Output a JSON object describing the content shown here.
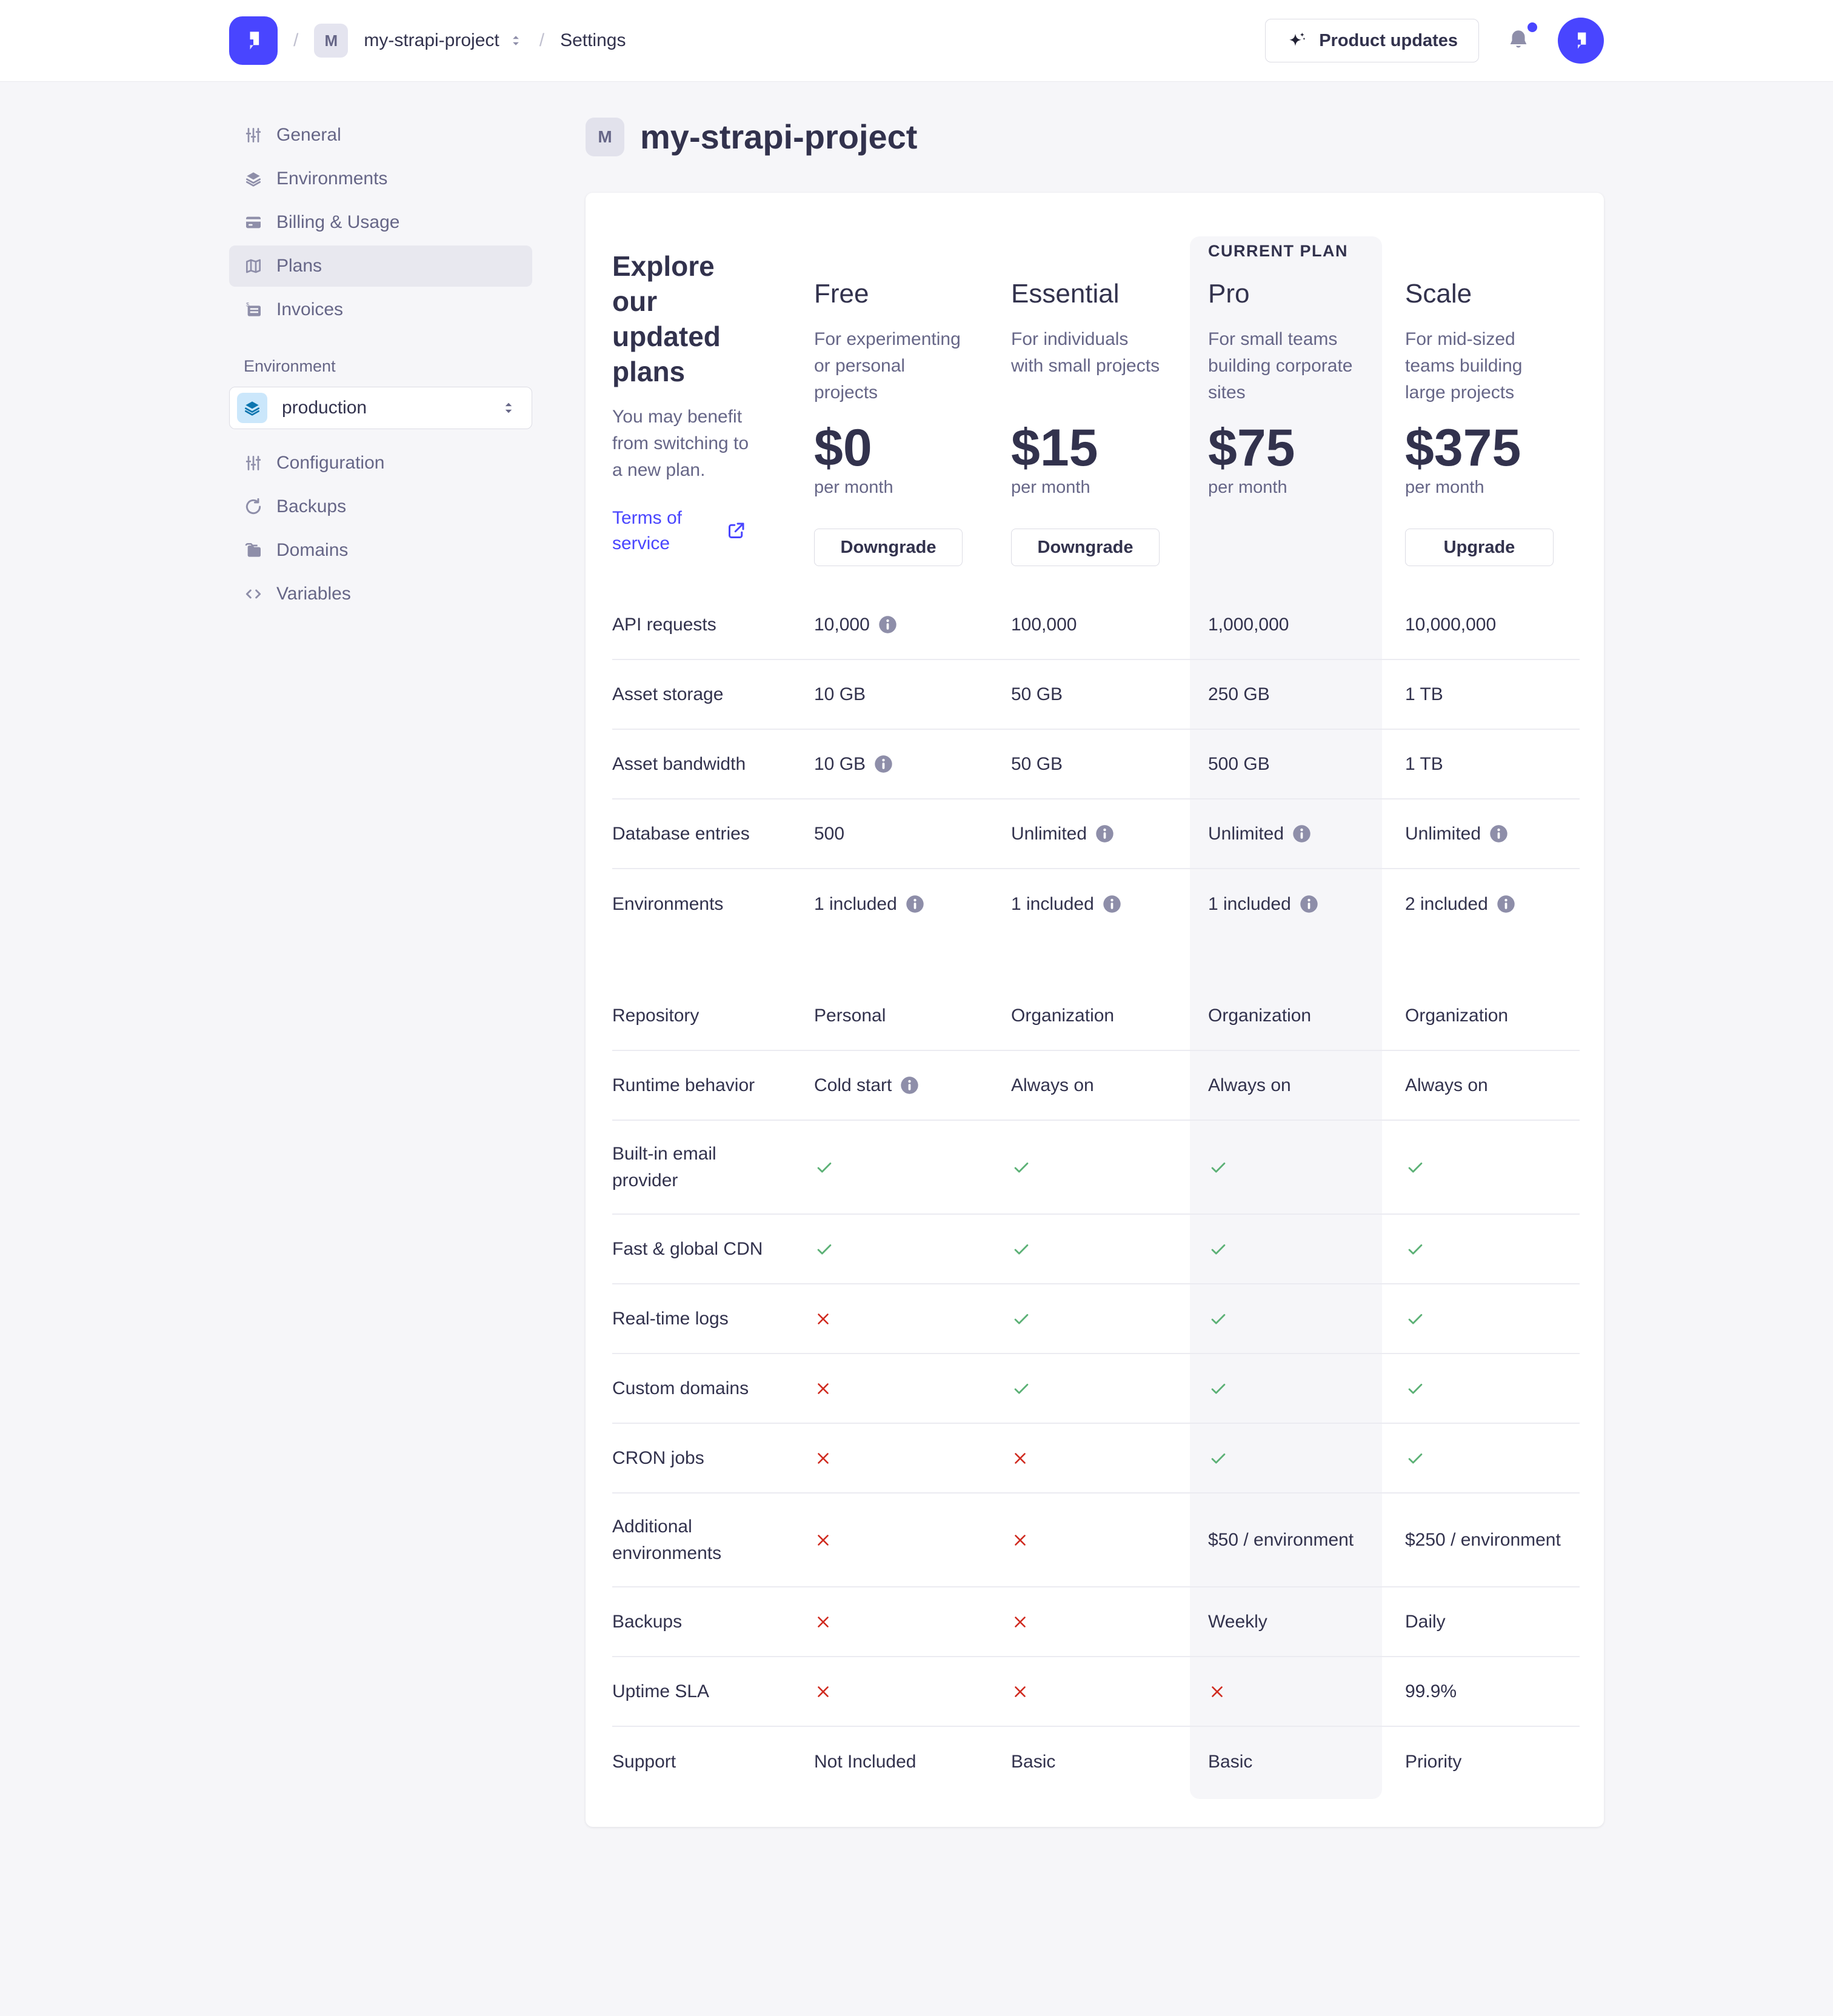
{
  "header": {
    "breadcrumb": {
      "separator": "/",
      "project_badge": "M",
      "project": "my-strapi-project",
      "settings": "Settings"
    },
    "product_updates": "Product updates"
  },
  "sidebar": {
    "project_nav": [
      {
        "label": "General",
        "icon": "sliders-icon",
        "active": false
      },
      {
        "label": "Environments",
        "icon": "layers-icon",
        "active": false
      },
      {
        "label": "Billing & Usage",
        "icon": "credit-card-icon",
        "active": false
      },
      {
        "label": "Plans",
        "icon": "map-icon",
        "active": true
      },
      {
        "label": "Invoices",
        "icon": "invoice-icon",
        "active": false
      }
    ],
    "environment_label": "Environment",
    "environment_select": {
      "value": "production",
      "icon": "layers-icon"
    },
    "environment_nav": [
      {
        "label": "Configuration",
        "icon": "sliders-icon",
        "active": false
      },
      {
        "label": "Backups",
        "icon": "refresh-icon",
        "active": false
      },
      {
        "label": "Domains",
        "icon": "folder-icon",
        "active": false
      },
      {
        "label": "Variables",
        "icon": "code-icon",
        "active": false
      }
    ]
  },
  "page": {
    "title": "my-strapi-project",
    "title_badge": "M"
  },
  "plans_card": {
    "intro": {
      "heading": "Explore our updated plans",
      "body": "You may benefit from switching to a new plan.",
      "terms_link": "Terms of service"
    },
    "current_plan_label": "CURRENT PLAN",
    "plans": [
      {
        "name": "Free",
        "description": "For experimenting or personal projects",
        "price": "$0",
        "period": "per month",
        "action": "Downgrade",
        "current": false
      },
      {
        "name": "Essential",
        "description": "For individuals with small projects",
        "price": "$15",
        "period": "per month",
        "action": "Downgrade",
        "current": false
      },
      {
        "name": "Pro",
        "description": "For small teams building corporate sites",
        "price": "$75",
        "period": "per month",
        "action": null,
        "current": true
      },
      {
        "name": "Scale",
        "description": "For mid-sized teams building large projects",
        "price": "$375",
        "period": "per month",
        "action": "Upgrade",
        "current": false
      }
    ],
    "feature_rows": [
      {
        "label": "API requests",
        "cells": [
          {
            "text": "10,000",
            "info": true
          },
          {
            "text": "100,000"
          },
          {
            "text": "1,000,000"
          },
          {
            "text": "10,000,000"
          }
        ]
      },
      {
        "label": "Asset storage",
        "cells": [
          {
            "text": "10 GB"
          },
          {
            "text": "50 GB"
          },
          {
            "text": "250 GB"
          },
          {
            "text": "1 TB"
          }
        ]
      },
      {
        "label": "Asset bandwidth",
        "cells": [
          {
            "text": "10 GB",
            "info": true
          },
          {
            "text": "50 GB"
          },
          {
            "text": "500 GB"
          },
          {
            "text": "1 TB"
          }
        ]
      },
      {
        "label": "Database entries",
        "cells": [
          {
            "text": "500"
          },
          {
            "text": "Unlimited",
            "info": true
          },
          {
            "text": "Unlimited",
            "info": true
          },
          {
            "text": "Unlimited",
            "info": true
          }
        ]
      },
      {
        "label": "Environments",
        "divider": false,
        "cells": [
          {
            "text": "1 included",
            "info": true
          },
          {
            "text": "1 included",
            "info": true
          },
          {
            "text": "1 included",
            "info": true
          },
          {
            "text": "2 included",
            "info": true
          }
        ]
      },
      {
        "label": "Repository",
        "gap_before": true,
        "cells": [
          {
            "text": "Personal"
          },
          {
            "text": "Organization"
          },
          {
            "text": "Organization"
          },
          {
            "text": "Organization"
          }
        ]
      },
      {
        "label": "Runtime behavior",
        "cells": [
          {
            "text": "Cold start",
            "info": true
          },
          {
            "text": "Always on"
          },
          {
            "text": "Always on"
          },
          {
            "text": "Always on"
          }
        ]
      },
      {
        "label": "Built-in email provider",
        "tall": true,
        "cells": [
          {
            "check": true
          },
          {
            "check": true
          },
          {
            "check": true
          },
          {
            "check": true
          }
        ]
      },
      {
        "label": "Fast & global CDN",
        "cells": [
          {
            "check": true
          },
          {
            "check": true
          },
          {
            "check": true
          },
          {
            "check": true
          }
        ]
      },
      {
        "label": "Real-time logs",
        "cells": [
          {
            "cross": true
          },
          {
            "check": true
          },
          {
            "check": true
          },
          {
            "check": true
          }
        ]
      },
      {
        "label": "Custom domains",
        "cells": [
          {
            "cross": true
          },
          {
            "check": true
          },
          {
            "check": true
          },
          {
            "check": true
          }
        ]
      },
      {
        "label": "CRON jobs",
        "cells": [
          {
            "cross": true
          },
          {
            "cross": true
          },
          {
            "check": true
          },
          {
            "check": true
          }
        ]
      },
      {
        "label": "Additional environments",
        "tall": true,
        "cells": [
          {
            "cross": true
          },
          {
            "cross": true
          },
          {
            "text": "$50 / environment"
          },
          {
            "text": "$250 / environment"
          }
        ]
      },
      {
        "label": "Backups",
        "cells": [
          {
            "cross": true
          },
          {
            "cross": true
          },
          {
            "text": "Weekly"
          },
          {
            "text": "Daily"
          }
        ]
      },
      {
        "label": "Uptime SLA",
        "cells": [
          {
            "cross": true
          },
          {
            "cross": true
          },
          {
            "cross": true
          },
          {
            "text": "99.9%"
          }
        ]
      },
      {
        "label": "Support",
        "divider": false,
        "cells": [
          {
            "text": "Not Included"
          },
          {
            "text": "Basic"
          },
          {
            "text": "Basic"
          },
          {
            "text": "Priority"
          }
        ]
      }
    ]
  },
  "colors": {
    "accent": "#4945ff",
    "success_check": "#5cb176",
    "danger_cross": "#d02b20",
    "info_icon": "#8e8ea9",
    "pro_highlight": "#f6f6f9"
  }
}
